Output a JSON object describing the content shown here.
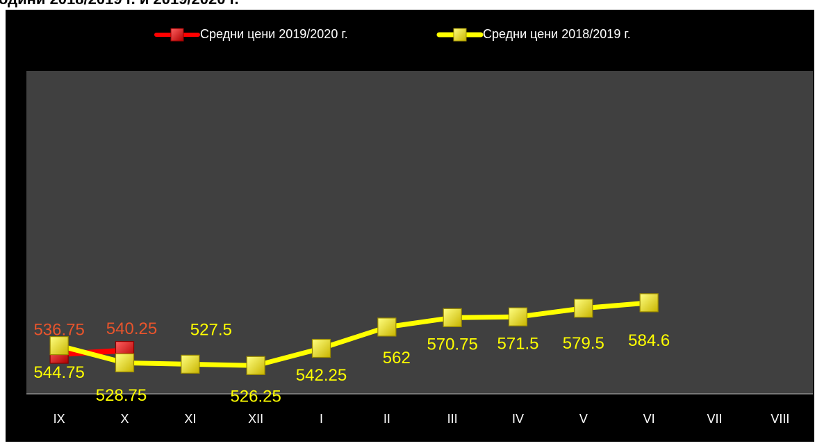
{
  "chart_data": {
    "type": "line",
    "title": "одини 2018/2019 г. и 2019/2020 г.",
    "categories": [
      "IX",
      "X",
      "XI",
      "XII",
      "I",
      "II",
      "III",
      "IV",
      "V",
      "VI",
      "VII",
      "VIII"
    ],
    "series": [
      {
        "name": "Средни цени 2019/2020 г.",
        "color": "#ff0000",
        "label_color": "#e8542c",
        "values": [
          536.75,
          540.25,
          null,
          null,
          null,
          null,
          null,
          null,
          null,
          null,
          null,
          null
        ]
      },
      {
        "name": "Средни цени 2018/2019 г.",
        "color": "#ffff00",
        "label_color": "#ffff00",
        "values": [
          544.75,
          528.75,
          527.5,
          526.25,
          542.25,
          562,
          570.75,
          571.5,
          579.5,
          584.6,
          null,
          null
        ]
      }
    ],
    "ylim": [
      500,
      800
    ],
    "legend": "top"
  }
}
